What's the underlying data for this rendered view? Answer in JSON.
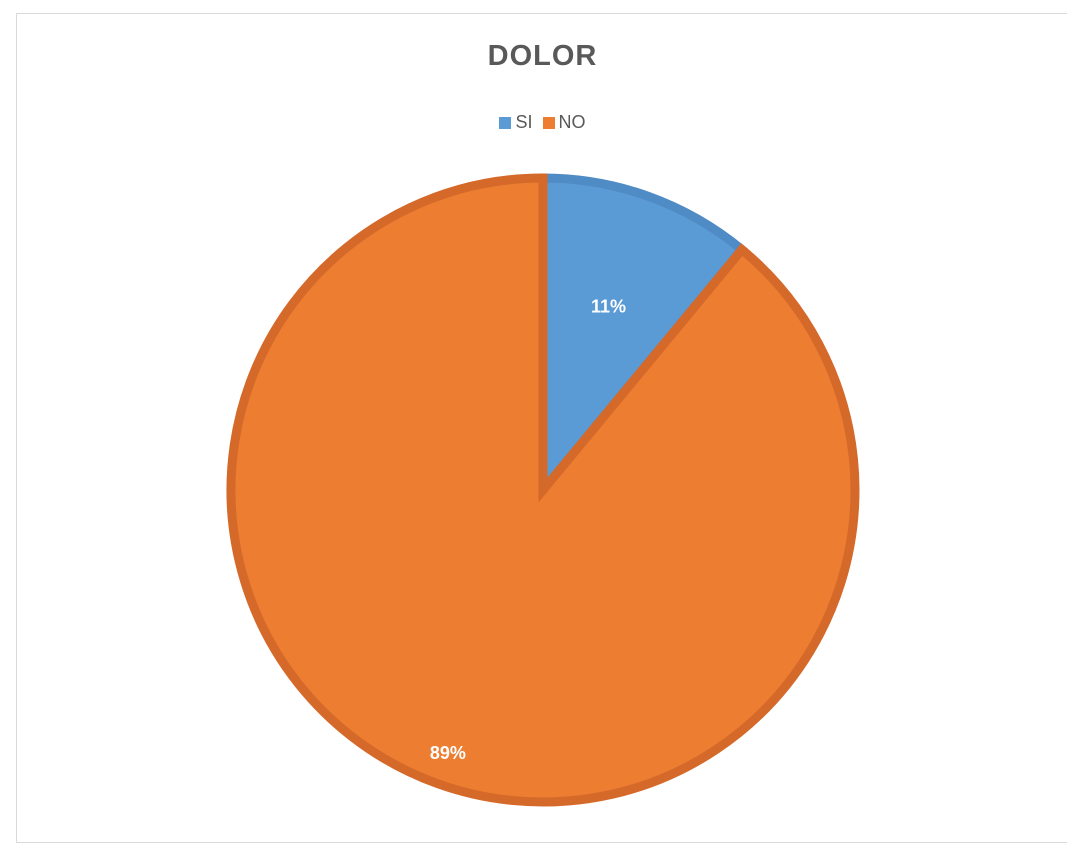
{
  "chart_data": {
    "type": "pie",
    "title": "DOLOR",
    "legend_position": "top",
    "categories": [
      "SI",
      "NO"
    ],
    "values": [
      11,
      89
    ],
    "labels": [
      "11%",
      "89%"
    ],
    "colors": [
      "#5b9bd5",
      "#ed7d31"
    ],
    "border_colors": [
      "#4f8bc4",
      "#d5692a"
    ]
  }
}
